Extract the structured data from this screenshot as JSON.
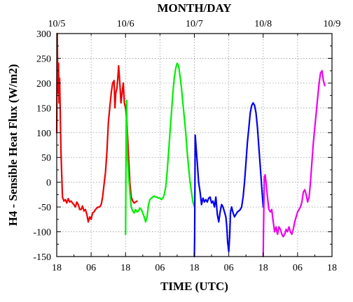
{
  "chart_data": {
    "type": "line",
    "title": "",
    "xlabel": "TIME (UTC)",
    "ylabel": "H4 - Sensible Heat Flux (W/m2)",
    "top_axis_label": "MONTH/DAY",
    "x_unit": "hours since 10/5 18 UTC",
    "xlim": [
      0,
      96
    ],
    "ylim": [
      -150,
      300
    ],
    "grid": true,
    "legend": "none",
    "x_ticks": [
      {
        "x": 0,
        "label": "18"
      },
      {
        "x": 12,
        "label": "06"
      },
      {
        "x": 24,
        "label": "18"
      },
      {
        "x": 36,
        "label": "06"
      },
      {
        "x": 48,
        "label": "18"
      },
      {
        "x": 60,
        "label": "06"
      },
      {
        "x": 72,
        "label": "18"
      },
      {
        "x": 84,
        "label": "06"
      },
      {
        "x": 96,
        "label": "18"
      }
    ],
    "top_ticks": [
      {
        "x": 0,
        "label": "10/5"
      },
      {
        "x": 24,
        "label": "10/6"
      },
      {
        "x": 48,
        "label": "10/7"
      },
      {
        "x": 72,
        "label": "10/8"
      },
      {
        "x": 96,
        "label": "10/9"
      }
    ],
    "y_ticks": [
      -150,
      -100,
      -50,
      0,
      50,
      100,
      150,
      200,
      250,
      300
    ],
    "series": [
      {
        "color": "#ee0000",
        "points": [
          [
            0,
            100
          ],
          [
            0.2,
            300
          ],
          [
            0.4,
            180
          ],
          [
            0.6,
            240
          ],
          [
            0.8,
            160
          ],
          [
            1.0,
            210
          ],
          [
            1.2,
            150
          ],
          [
            1.5,
            60
          ],
          [
            2,
            -30
          ],
          [
            2.5,
            -38
          ],
          [
            3,
            -35
          ],
          [
            3.5,
            -42
          ],
          [
            4,
            -33
          ],
          [
            4.5,
            -40
          ],
          [
            5,
            -38
          ],
          [
            5.5,
            -42
          ],
          [
            6,
            -45
          ],
          [
            6.5,
            -50
          ],
          [
            7,
            -40
          ],
          [
            7.5,
            -45
          ],
          [
            8,
            -55
          ],
          [
            8.5,
            -55
          ],
          [
            9,
            -48
          ],
          [
            9.5,
            -58
          ],
          [
            10,
            -55
          ],
          [
            10.5,
            -65
          ],
          [
            11,
            -80
          ],
          [
            11.5,
            -70
          ],
          [
            12,
            -75
          ],
          [
            12.5,
            -62
          ],
          [
            13,
            -60
          ],
          [
            13.5,
            -55
          ],
          [
            14,
            -52
          ],
          [
            14.5,
            -50
          ],
          [
            15,
            -50
          ],
          [
            15.5,
            -45
          ],
          [
            16,
            -30
          ],
          [
            16.5,
            -5
          ],
          [
            17,
            20
          ],
          [
            17.5,
            60
          ],
          [
            18,
            120
          ],
          [
            18.5,
            150
          ],
          [
            19,
            180
          ],
          [
            19.5,
            200
          ],
          [
            20,
            205
          ],
          [
            20.3,
            150
          ],
          [
            20.6,
            180
          ],
          [
            21,
            190
          ],
          [
            21.3,
            210
          ],
          [
            21.6,
            235
          ],
          [
            22,
            200
          ],
          [
            22.4,
            160
          ],
          [
            22.8,
            180
          ],
          [
            23.2,
            200
          ],
          [
            23.6,
            160
          ],
          [
            24,
            150
          ],
          [
            24.5,
            120
          ],
          [
            25,
            60
          ],
          [
            25.5,
            0
          ],
          [
            26,
            -30
          ],
          [
            26.5,
            -38
          ],
          [
            27,
            -42
          ],
          [
            27.5,
            -40
          ],
          [
            28,
            -38
          ]
        ]
      },
      {
        "color": "#00ee00",
        "points": [
          [
            24,
            -105
          ],
          [
            24.2,
            100
          ],
          [
            24.4,
            165
          ],
          [
            24.6,
            60
          ],
          [
            25,
            20
          ],
          [
            25.5,
            -20
          ],
          [
            26,
            -50
          ],
          [
            26.5,
            -58
          ],
          [
            27,
            -62
          ],
          [
            27.5,
            -55
          ],
          [
            28,
            -60
          ],
          [
            28.5,
            -58
          ],
          [
            29,
            -52
          ],
          [
            29.5,
            -55
          ],
          [
            30,
            -62
          ],
          [
            30.5,
            -70
          ],
          [
            31,
            -80
          ],
          [
            31.5,
            -70
          ],
          [
            32,
            -45
          ],
          [
            32.5,
            -35
          ],
          [
            33,
            -32
          ],
          [
            33.5,
            -30
          ],
          [
            34,
            -28
          ],
          [
            34.5,
            -30
          ],
          [
            35,
            -30
          ],
          [
            35.5,
            -32
          ],
          [
            36,
            -32
          ],
          [
            36.5,
            -35
          ],
          [
            37,
            -32
          ],
          [
            37.5,
            -25
          ],
          [
            38,
            -10
          ],
          [
            38.5,
            20
          ],
          [
            39,
            60
          ],
          [
            39.5,
            100
          ],
          [
            40,
            140
          ],
          [
            40.5,
            180
          ],
          [
            41,
            210
          ],
          [
            41.5,
            230
          ],
          [
            42,
            240
          ],
          [
            42.5,
            235
          ],
          [
            43,
            215
          ],
          [
            43.5,
            190
          ],
          [
            44,
            160
          ],
          [
            44.5,
            130
          ],
          [
            45,
            100
          ],
          [
            45.5,
            60
          ],
          [
            46,
            30
          ],
          [
            46.5,
            0
          ],
          [
            47,
            -20
          ],
          [
            47.5,
            -40
          ],
          [
            48,
            -50
          ]
        ]
      },
      {
        "color": "#0000ee",
        "points": [
          [
            48,
            -150
          ],
          [
            48.1,
            -110
          ],
          [
            48.3,
            95
          ],
          [
            48.6,
            70
          ],
          [
            49,
            40
          ],
          [
            49.5,
            0
          ],
          [
            50,
            -20
          ],
          [
            50.5,
            -45
          ],
          [
            51,
            -32
          ],
          [
            51.5,
            -40
          ],
          [
            52,
            -35
          ],
          [
            52.5,
            -40
          ],
          [
            53,
            -32
          ],
          [
            53.5,
            -30
          ],
          [
            54,
            -42
          ],
          [
            54.5,
            -38
          ],
          [
            55,
            -50
          ],
          [
            55.5,
            -30
          ],
          [
            56,
            -65
          ],
          [
            56.5,
            -80
          ],
          [
            57,
            -60
          ],
          [
            57.5,
            -45
          ],
          [
            58,
            -50
          ],
          [
            58.5,
            -60
          ],
          [
            59,
            -70
          ],
          [
            59.3,
            -90
          ],
          [
            59.6,
            -120
          ],
          [
            60,
            -140
          ],
          [
            60.3,
            -110
          ],
          [
            60.6,
            -60
          ],
          [
            61,
            -50
          ],
          [
            61.5,
            -62
          ],
          [
            62,
            -70
          ],
          [
            62.5,
            -65
          ],
          [
            63,
            -60
          ],
          [
            63.5,
            -58
          ],
          [
            64,
            -55
          ],
          [
            64.5,
            -50
          ],
          [
            65,
            -30
          ],
          [
            65.5,
            0
          ],
          [
            66,
            40
          ],
          [
            66.5,
            80
          ],
          [
            67,
            110
          ],
          [
            67.5,
            140
          ],
          [
            68,
            155
          ],
          [
            68.5,
            160
          ],
          [
            69,
            155
          ],
          [
            69.5,
            140
          ],
          [
            70,
            110
          ],
          [
            70.5,
            70
          ],
          [
            71,
            30
          ],
          [
            71.5,
            -10
          ],
          [
            72,
            -50
          ]
        ]
      },
      {
        "color": "#ee00ee",
        "points": [
          [
            72,
            -150
          ],
          [
            72.1,
            -100
          ],
          [
            72.4,
            10
          ],
          [
            72.7,
            15
          ],
          [
            73,
            0
          ],
          [
            73.5,
            -30
          ],
          [
            74,
            -55
          ],
          [
            74.5,
            -60
          ],
          [
            75,
            -55
          ],
          [
            75.5,
            -80
          ],
          [
            76,
            -100
          ],
          [
            76.5,
            -90
          ],
          [
            77,
            -105
          ],
          [
            77.5,
            -90
          ],
          [
            78,
            -95
          ],
          [
            78.5,
            -105
          ],
          [
            79,
            -110
          ],
          [
            79.5,
            -105
          ],
          [
            80,
            -95
          ],
          [
            80.5,
            -100
          ],
          [
            81,
            -90
          ],
          [
            81.5,
            -100
          ],
          [
            82,
            -105
          ],
          [
            82.5,
            -95
          ],
          [
            83,
            -80
          ],
          [
            83.5,
            -70
          ],
          [
            84,
            -60
          ],
          [
            84.5,
            -55
          ],
          [
            85,
            -50
          ],
          [
            85.5,
            -40
          ],
          [
            86,
            -20
          ],
          [
            86.5,
            -15
          ],
          [
            87,
            -25
          ],
          [
            87.5,
            -40
          ],
          [
            88,
            -30
          ],
          [
            88.5,
            0
          ],
          [
            89,
            40
          ],
          [
            89.5,
            80
          ],
          [
            90,
            110
          ],
          [
            90.5,
            140
          ],
          [
            91,
            170
          ],
          [
            91.5,
            200
          ],
          [
            92,
            220
          ],
          [
            92.5,
            225
          ],
          [
            93,
            205
          ],
          [
            93.5,
            195
          ]
        ]
      }
    ]
  }
}
